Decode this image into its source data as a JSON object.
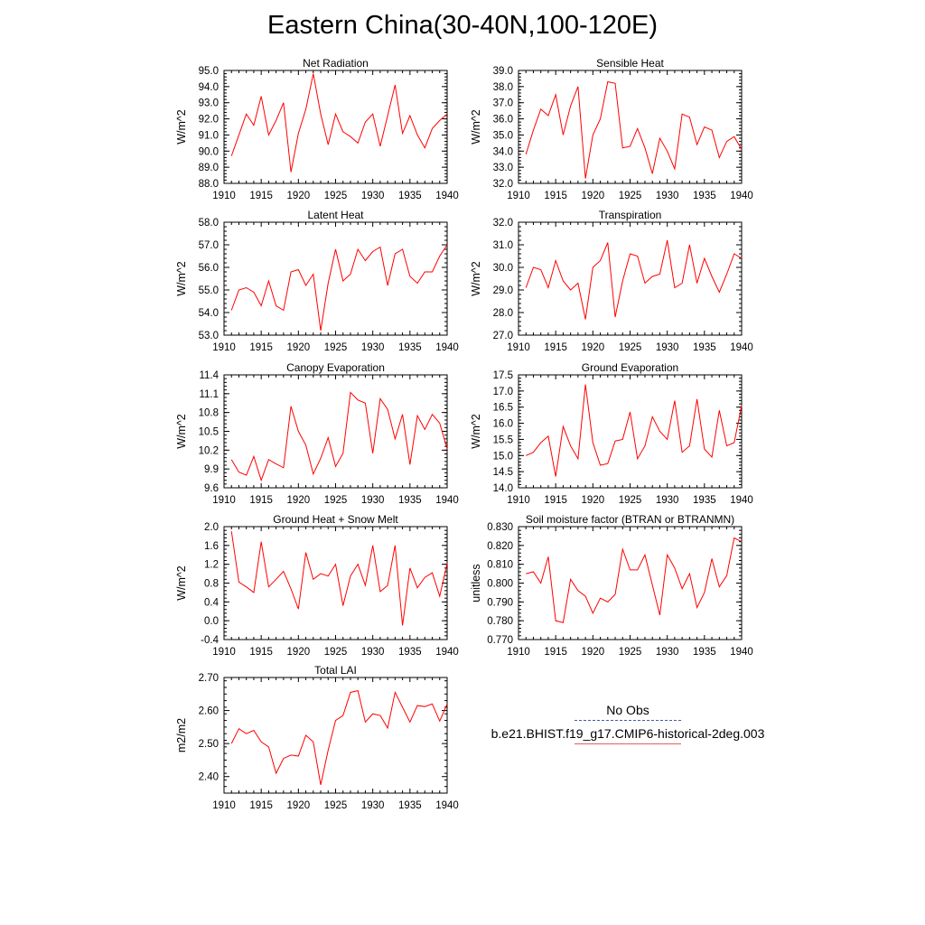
{
  "title": "Eastern China(30-40N,100-120E)",
  "line_color": "#ff0000",
  "legend": {
    "items": [
      {
        "label": "No Obs",
        "color": "#4a5aa8",
        "style": "dashed"
      },
      {
        "label": "b.e21.BHIST.f19_g17.CMIP6-historical-2deg.003",
        "color": "#e06060",
        "style": "solid"
      }
    ]
  },
  "chart_data": [
    {
      "type": "line",
      "title": "Net Radiation",
      "ylabel": "W/m^2",
      "xlim": [
        1910,
        1940
      ],
      "ylim": [
        88.0,
        95.0
      ],
      "xticks": [
        1910,
        1915,
        1920,
        1925,
        1930,
        1935,
        1940
      ],
      "yticks": [
        "88.0",
        "89.0",
        "90.0",
        "91.0",
        "92.0",
        "93.0",
        "94.0",
        "95.0"
      ],
      "x": [
        1911,
        1912,
        1913,
        1914,
        1915,
        1916,
        1917,
        1918,
        1919,
        1920,
        1921,
        1922,
        1923,
        1924,
        1925,
        1926,
        1927,
        1928,
        1929,
        1930,
        1931,
        1932,
        1933,
        1934,
        1935,
        1936,
        1937,
        1938,
        1939,
        1940
      ],
      "values": [
        89.7,
        91.0,
        92.3,
        91.6,
        93.4,
        91.0,
        91.9,
        93.0,
        88.7,
        91.1,
        92.6,
        94.8,
        92.3,
        90.4,
        92.3,
        91.2,
        90.9,
        90.5,
        91.8,
        92.3,
        90.3,
        92.2,
        94.1,
        91.1,
        92.2,
        91.0,
        90.2,
        91.4,
        91.9,
        92.3
      ]
    },
    {
      "type": "line",
      "title": "Sensible Heat",
      "ylabel": "W/m^2",
      "xlim": [
        1910,
        1940
      ],
      "ylim": [
        32.0,
        39.0
      ],
      "xticks": [
        1910,
        1915,
        1920,
        1925,
        1930,
        1935,
        1940
      ],
      "yticks": [
        "32.0",
        "33.0",
        "34.0",
        "35.0",
        "36.0",
        "37.0",
        "38.0",
        "39.0"
      ],
      "x": [
        1911,
        1912,
        1913,
        1914,
        1915,
        1916,
        1917,
        1918,
        1919,
        1920,
        1921,
        1922,
        1923,
        1924,
        1925,
        1926,
        1927,
        1928,
        1929,
        1930,
        1931,
        1932,
        1933,
        1934,
        1935,
        1936,
        1937,
        1938,
        1939,
        1940
      ],
      "values": [
        33.8,
        35.3,
        36.6,
        36.2,
        37.5,
        35.0,
        36.8,
        38.0,
        32.3,
        35.0,
        36.0,
        38.3,
        38.2,
        34.2,
        34.3,
        35.4,
        34.2,
        32.6,
        34.8,
        34.0,
        32.9,
        36.3,
        36.1,
        34.4,
        35.5,
        35.3,
        33.6,
        34.6,
        34.9,
        34.1
      ]
    },
    {
      "type": "line",
      "title": "Latent Heat",
      "ylabel": "W/m^2",
      "xlim": [
        1910,
        1940
      ],
      "ylim": [
        53.0,
        58.0
      ],
      "xticks": [
        1910,
        1915,
        1920,
        1925,
        1930,
        1935,
        1940
      ],
      "yticks": [
        "53.0",
        "54.0",
        "55.0",
        "56.0",
        "57.0",
        "58.0"
      ],
      "x": [
        1911,
        1912,
        1913,
        1914,
        1915,
        1916,
        1917,
        1918,
        1919,
        1920,
        1921,
        1922,
        1923,
        1924,
        1925,
        1926,
        1927,
        1928,
        1929,
        1930,
        1931,
        1932,
        1933,
        1934,
        1935,
        1936,
        1937,
        1938,
        1939,
        1940
      ],
      "values": [
        54.1,
        55.0,
        55.1,
        54.9,
        54.3,
        55.4,
        54.3,
        54.1,
        55.8,
        55.9,
        55.2,
        55.7,
        53.2,
        55.3,
        56.8,
        55.4,
        55.7,
        56.8,
        56.3,
        56.7,
        56.9,
        55.2,
        56.6,
        56.8,
        55.6,
        55.3,
        55.8,
        55.8,
        56.5,
        57.0
      ]
    },
    {
      "type": "line",
      "title": "Transpiration",
      "ylabel": "W/m^2",
      "xlim": [
        1910,
        1940
      ],
      "ylim": [
        27.0,
        32.0
      ],
      "xticks": [
        1910,
        1915,
        1920,
        1925,
        1930,
        1935,
        1940
      ],
      "yticks": [
        "27.0",
        "28.0",
        "29.0",
        "30.0",
        "31.0",
        "32.0"
      ],
      "x": [
        1911,
        1912,
        1913,
        1914,
        1915,
        1916,
        1917,
        1918,
        1919,
        1920,
        1921,
        1922,
        1923,
        1924,
        1925,
        1926,
        1927,
        1928,
        1929,
        1930,
        1931,
        1932,
        1933,
        1934,
        1935,
        1936,
        1937,
        1938,
        1939,
        1940
      ],
      "values": [
        29.1,
        30.0,
        29.9,
        29.1,
        30.3,
        29.4,
        29.0,
        29.3,
        27.7,
        30.0,
        30.3,
        31.1,
        27.8,
        29.4,
        30.6,
        30.5,
        29.3,
        29.6,
        29.7,
        31.2,
        29.1,
        29.3,
        31.0,
        29.3,
        30.4,
        29.6,
        28.9,
        29.7,
        30.6,
        30.4
      ]
    },
    {
      "type": "line",
      "title": "Canopy Evaporation",
      "ylabel": "W/m^2",
      "xlim": [
        1910,
        1940
      ],
      "ylim": [
        9.6,
        11.4
      ],
      "xticks": [
        1910,
        1915,
        1920,
        1925,
        1930,
        1935,
        1940
      ],
      "yticks": [
        "9.6",
        "9.9",
        "10.2",
        "10.5",
        "10.8",
        "11.1",
        "11.4"
      ],
      "x": [
        1911,
        1912,
        1913,
        1914,
        1915,
        1916,
        1917,
        1918,
        1919,
        1920,
        1921,
        1922,
        1923,
        1924,
        1925,
        1926,
        1927,
        1928,
        1929,
        1930,
        1931,
        1932,
        1933,
        1934,
        1935,
        1936,
        1937,
        1938,
        1939,
        1940
      ],
      "values": [
        10.05,
        9.85,
        9.8,
        10.1,
        9.72,
        10.05,
        9.98,
        9.92,
        10.9,
        10.5,
        10.28,
        9.82,
        10.07,
        10.4,
        9.94,
        10.15,
        11.12,
        11.0,
        10.95,
        10.15,
        11.02,
        10.85,
        10.38,
        10.77,
        9.97,
        10.75,
        10.53,
        10.77,
        10.63,
        10.22
      ]
    },
    {
      "type": "line",
      "title": "Ground Evaporation",
      "ylabel": "W/m^2",
      "xlim": [
        1910,
        1940
      ],
      "ylim": [
        14.0,
        17.5
      ],
      "xticks": [
        1910,
        1915,
        1920,
        1925,
        1930,
        1935,
        1940
      ],
      "yticks": [
        "14.0",
        "14.5",
        "15.0",
        "15.5",
        "16.0",
        "16.5",
        "17.0",
        "17.5"
      ],
      "x": [
        1911,
        1912,
        1913,
        1914,
        1915,
        1916,
        1917,
        1918,
        1919,
        1920,
        1921,
        1922,
        1923,
        1924,
        1925,
        1926,
        1927,
        1928,
        1929,
        1930,
        1931,
        1932,
        1933,
        1934,
        1935,
        1936,
        1937,
        1938,
        1939,
        1940
      ],
      "values": [
        15.0,
        15.1,
        15.4,
        15.6,
        14.35,
        15.9,
        15.3,
        14.9,
        17.2,
        15.4,
        14.7,
        14.75,
        15.45,
        15.5,
        16.35,
        14.9,
        15.3,
        16.2,
        15.75,
        15.5,
        16.7,
        15.1,
        15.3,
        16.75,
        15.2,
        14.95,
        16.4,
        15.3,
        15.4,
        16.55
      ]
    },
    {
      "type": "line",
      "title": "Ground Heat + Snow Melt",
      "ylabel": "W/m^2",
      "xlim": [
        1910,
        1940
      ],
      "ylim": [
        -0.4,
        2.0
      ],
      "xticks": [
        1910,
        1915,
        1920,
        1925,
        1930,
        1935,
        1940
      ],
      "yticks": [
        "-0.4",
        "0.0",
        "0.4",
        "0.8",
        "1.2",
        "1.6",
        "2.0"
      ],
      "x": [
        1911,
        1912,
        1913,
        1914,
        1915,
        1916,
        1917,
        1918,
        1919,
        1920,
        1921,
        1922,
        1923,
        1924,
        1925,
        1926,
        1927,
        1928,
        1929,
        1930,
        1931,
        1932,
        1933,
        1934,
        1935,
        1936,
        1937,
        1938,
        1939,
        1940
      ],
      "values": [
        1.9,
        0.82,
        0.72,
        0.6,
        1.68,
        0.72,
        0.88,
        1.05,
        0.68,
        0.25,
        1.45,
        0.88,
        1.0,
        0.95,
        1.2,
        0.32,
        0.95,
        1.2,
        0.75,
        1.6,
        0.62,
        0.75,
        1.6,
        -0.1,
        1.12,
        0.7,
        0.92,
        1.02,
        0.52,
        1.22
      ]
    },
    {
      "type": "line",
      "title": "Soil moisture factor (BTRAN or BTRANMN)",
      "ylabel": "unitless",
      "xlim": [
        1910,
        1940
      ],
      "ylim": [
        0.77,
        0.83
      ],
      "xticks": [
        1910,
        1915,
        1920,
        1925,
        1930,
        1935,
        1940
      ],
      "yticks": [
        "0.770",
        "0.780",
        "0.790",
        "0.800",
        "0.810",
        "0.820",
        "0.830"
      ],
      "x": [
        1911,
        1912,
        1913,
        1914,
        1915,
        1916,
        1917,
        1918,
        1919,
        1920,
        1921,
        1922,
        1923,
        1924,
        1925,
        1926,
        1927,
        1928,
        1929,
        1930,
        1931,
        1932,
        1933,
        1934,
        1935,
        1936,
        1937,
        1938,
        1939,
        1940
      ],
      "values": [
        0.805,
        0.806,
        0.8,
        0.814,
        0.78,
        0.779,
        0.802,
        0.796,
        0.793,
        0.784,
        0.792,
        0.79,
        0.794,
        0.818,
        0.807,
        0.807,
        0.815,
        0.799,
        0.783,
        0.815,
        0.808,
        0.797,
        0.805,
        0.787,
        0.795,
        0.813,
        0.798,
        0.804,
        0.824,
        0.822
      ]
    },
    {
      "type": "line",
      "title": "Total LAI",
      "ylabel": "m2/m2",
      "xlim": [
        1910,
        1940
      ],
      "ylim": [
        2.35,
        2.7
      ],
      "xticks": [
        1910,
        1915,
        1920,
        1925,
        1930,
        1935,
        1940
      ],
      "yticks": [
        "2.40",
        "2.50",
        "2.60",
        "2.70"
      ],
      "ytick_values": [
        2.4,
        2.5,
        2.6,
        2.7
      ],
      "x": [
        1911,
        1912,
        1913,
        1914,
        1915,
        1916,
        1917,
        1918,
        1919,
        1920,
        1921,
        1922,
        1923,
        1924,
        1925,
        1926,
        1927,
        1928,
        1929,
        1930,
        1931,
        1932,
        1933,
        1934,
        1935,
        1936,
        1937,
        1938,
        1939,
        1940
      ],
      "values": [
        2.5,
        2.545,
        2.53,
        2.54,
        2.505,
        2.49,
        2.41,
        2.455,
        2.465,
        2.462,
        2.525,
        2.505,
        2.375,
        2.48,
        2.57,
        2.585,
        2.655,
        2.66,
        2.565,
        2.59,
        2.585,
        2.547,
        2.655,
        2.61,
        2.565,
        2.615,
        2.612,
        2.62,
        2.568,
        2.62
      ]
    }
  ]
}
